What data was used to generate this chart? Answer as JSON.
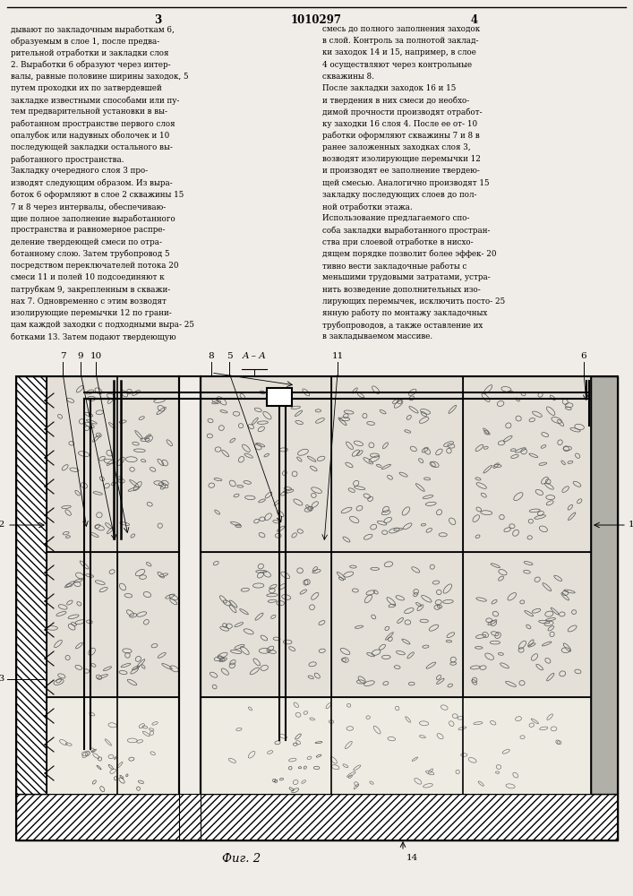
{
  "page_bg": "#f0ede8",
  "header_text": "1010297",
  "page_num_left": "3",
  "page_num_right": "4",
  "fig_label": "Фиг. 2",
  "left_col_lines": [
    "дывают по закладочным выработкам 6,",
    "образуемым в слое 1, после предва-",
    "рительной отработки и закладки слоя",
    "2. Выработки 6 образуют через интер-",
    "валы, равные половине ширины заходок, 5",
    "путем проходки их по затвердевшей",
    "закладке известными способами или пу-",
    "тем предварительной установки в вы-",
    "работанном пространстве первого слоя",
    "опалубок или надувных оболочек и 10",
    "последующей закладки остального вы-",
    "работанного пространства.",
    "Закладку очередного слоя 3 про-",
    "изводят следующим образом. Из выра-",
    "боток 6 оформляют в слое 2 скважины 15",
    "7 и 8 через интервалы, обеспечиваю-",
    "щие полное заполнение выработанного",
    "пространства и равномерное распре-",
    "деление твердеющей смеси по отра-",
    "ботанному слою. Затем трубопровод 5",
    "посредством переключателей потока 20",
    "смеси 11 и полей 10 подсоединяют к",
    "патрубкам 9, закрепленным в скважи-",
    "нах 7. Одновременно с этим возводят",
    "изолирующие перемычки 12 по грани-",
    "цам каждой заходки с подходными выра- 25",
    "ботками 13. Затем подают твердеющую"
  ],
  "right_col_lines": [
    "смесь до полного заполнения заходок",
    "в слой. Контроль за полнотой заклад-",
    "ки заходок 14 и 15, например, в слое",
    "4 осуществляют через контрольные",
    "скважины 8.",
    "После закладки заходок 16 и 15",
    "и твердения в них смеси до необхо-",
    "димой прочности производят отработ-",
    "ку заходки 16 слоя 4. После ее от- 10",
    "работки оформляют скважины 7 и 8 в",
    "ранее заложенных заходках слоя 3,",
    "возводят изолирующие перемычки 12",
    "и производят ее заполнение твердею-",
    "щей смесью. Аналогично производят 15",
    "закладку последующих слоев до пол-",
    "ной отработки этажа.",
    "Использование предлагаемого спо-",
    "соба закладки выработанного простран-",
    "ства при слоевой отработке в нисхо-",
    "дящем порядке позволит более эффек- 20",
    "тивно вести закладочные работы с",
    "меньшими трудовыми затратами, устра-",
    "нить возведение дополнительных изо-",
    "лирующих перемычек, исключить посто- 25",
    "янную работу по монтажу закладочных",
    "трубопроводов, а также оставление их",
    "в закладываемом массиве."
  ]
}
